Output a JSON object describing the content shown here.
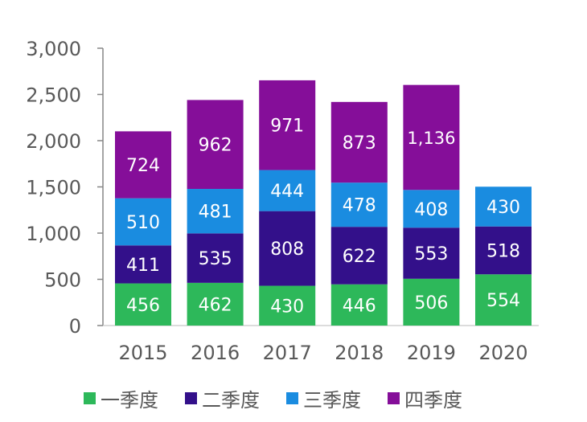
{
  "chart_data": {
    "type": "bar",
    "stacked": true,
    "categories": [
      "2015",
      "2016",
      "2017",
      "2018",
      "2019",
      "2020"
    ],
    "series": [
      {
        "name": "一季度",
        "color": "#2DB85A",
        "values": [
          456,
          462,
          430,
          446,
          506,
          554
        ]
      },
      {
        "name": "二季度",
        "color": "#33108A",
        "values": [
          411,
          535,
          808,
          622,
          553,
          518
        ]
      },
      {
        "name": "三季度",
        "color": "#1A8CE0",
        "values": [
          510,
          481,
          444,
          478,
          408,
          430
        ]
      },
      {
        "name": "四季度",
        "color": "#850E99",
        "values": [
          724,
          962,
          971,
          873,
          1136,
          null
        ]
      }
    ],
    "ylim": [
      0,
      3000
    ],
    "yticks": [
      "0",
      "500",
      "1,000",
      "1,500",
      "2,000",
      "2,500",
      "3,000"
    ],
    "grid": false,
    "legend": "bottom",
    "title": "",
    "xlabel": "",
    "ylabel": ""
  }
}
